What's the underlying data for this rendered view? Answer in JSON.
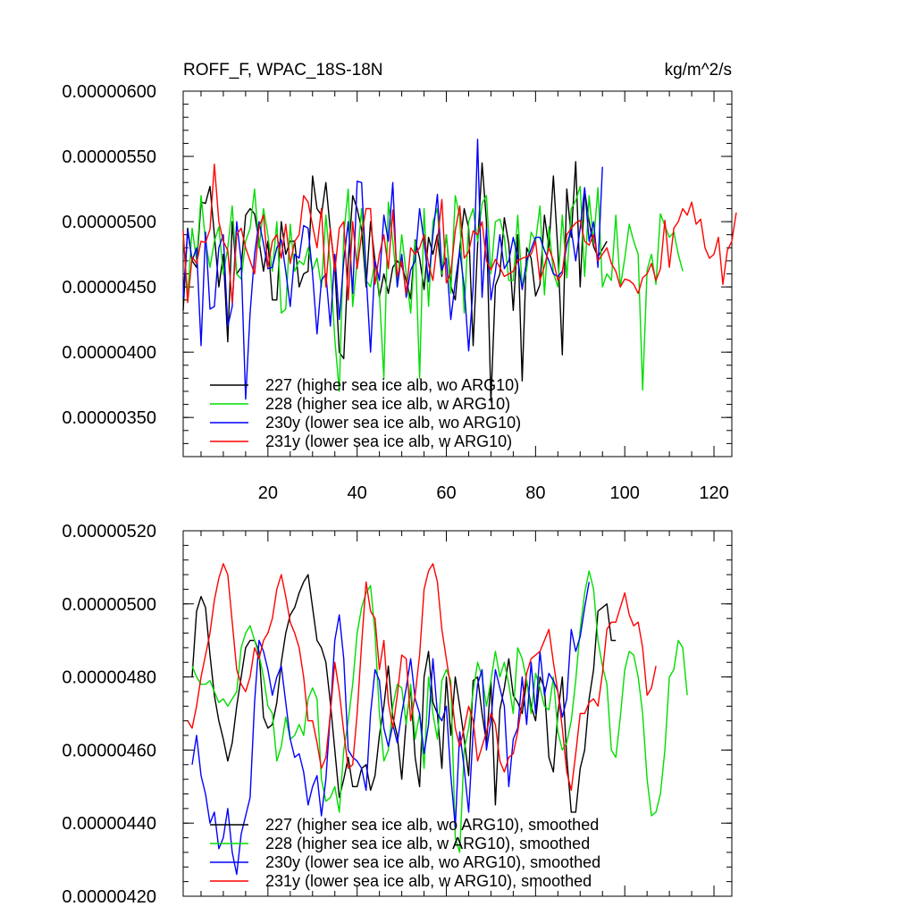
{
  "chart_data": [
    {
      "type": "line",
      "title": "ROFF_F, WPAC_18S-18N",
      "units": "kg/m^2/s",
      "xlim": [
        1,
        124
      ],
      "ylim": [
        3.2e-06,
        6e-06
      ],
      "xticks": [
        20,
        40,
        60,
        80,
        100,
        120
      ],
      "xtick_labels": [
        "20",
        "40",
        "60",
        "80",
        "100",
        "120"
      ],
      "yticks": [
        3.5e-06,
        4e-06,
        4.5e-06,
        5e-06,
        5.5e-06,
        6e-06
      ],
      "ytick_labels": [
        "0.00000350",
        "0.00000400",
        "0.00000450",
        "0.00000500",
        "0.00000550",
        "0.00000600"
      ],
      "legend_position": "bottom-left",
      "series": [
        {
          "name": "227 (higher sea ice alb, wo ARG10)",
          "color": "#000000",
          "x_start": 1,
          "values": [
            4.32,
            4.95,
            4.7,
            4.65,
            5.15,
            5.14,
            5.27,
            4.9,
            4.5,
            4.75,
            4.08,
            5.0,
            4.6,
            4.65,
            5.05,
            5.1,
            5.06,
            4.85,
            4.62,
            4.85,
            4.4,
            4.4,
            5.0,
            4.75,
            4.85,
            4.85,
            4.5,
            4.6,
            4.62,
            5.35,
            5.1,
            5.05,
            5.3,
            4.93,
            4.65,
            4.0,
            3.95,
            4.7,
            5.2,
            5.1,
            4.94,
            4.5,
            5.0,
            4.7,
            4.42,
            4.6,
            4.45,
            4.65,
            4.7,
            4.66,
            4.55,
            4.41,
            4.86,
            4.72,
            4.48,
            4.88,
            4.75,
            4.9,
            4.58,
            4.9,
            4.51,
            4.4,
            4.79,
            5.1,
            4.95,
            4.05,
            4.82,
            5.45,
            5.0,
            3.62,
            4.51,
            4.6,
            5.03,
            4.83,
            4.32,
            4.9,
            3.78,
            4.8,
            4.72,
            4.43,
            4.52,
            5.05,
            4.8,
            5.35,
            4.78,
            3.98,
            5.25,
            4.88,
            5.46,
            4.5,
            5.24,
            5.0,
            4.81,
            4.73,
            4.79,
            4.85
          ]
        },
        {
          "name": "228 (higher sea ice alb, w ARG10)",
          "color": "#00dd00",
          "x_start": 1,
          "values": [
            4.9,
            4.43,
            4.95,
            4.7,
            5.2,
            4.85,
            4.65,
            4.85,
            4.96,
            4.6,
            4.8,
            5.12,
            4.6,
            4.56,
            4.85,
            4.95,
            5.25,
            4.8,
            5.1,
            4.9,
            4.62,
            5.0,
            4.3,
            4.33,
            4.98,
            4.62,
            4.7,
            4.67,
            4.8,
            4.63,
            4.72,
            4.5,
            5.05,
            4.66,
            4.1,
            3.7,
            4.9,
            5.25,
            4.35,
            4.7,
            5.1,
            4.55,
            4.5,
            4.7,
            4.45,
            3.8,
            5.15,
            4.85,
            4.5,
            4.9,
            4.6,
            4.3,
            4.85,
            3.8,
            5.1,
            4.35,
            5.0,
            5.1,
            4.6,
            4.9,
            4.45,
            5.2,
            5.04,
            4.3,
            5.0,
            5.1,
            4.85,
            5.14,
            5.2,
            4.6,
            5.0,
            5.02,
            4.88,
            4.55,
            4.55,
            5.05,
            4.5,
            4.63,
            4.92,
            4.85,
            5.12,
            4.44,
            4.96,
            4.61,
            4.5,
            5.05,
            4.57,
            5.1,
            5.16,
            5.27,
            4.58,
            5.2,
            4.84,
            5.26,
            4.5,
            4.6,
            4.55,
            5.05,
            4.5,
            4.72,
            4.98,
            4.85,
            4.75,
            3.71,
            4.63,
            4.75,
            4.52,
            5.06,
            4.97,
            4.88,
            4.92,
            4.75,
            4.62
          ]
        },
        {
          "name": "230y (lower sea ice alb, wo ARG10)",
          "color": "#0000ff",
          "x_start": 1,
          "values": [
            4.42,
            4.93,
            4.7,
            4.8,
            4.05,
            4.92,
            4.33,
            4.35,
            4.8,
            4.9,
            4.2,
            4.35,
            5.0,
            4.7,
            3.64,
            4.3,
            4.75,
            5.0,
            4.83,
            4.64,
            4.65,
            4.8,
            4.86,
            4.62,
            4.35,
            4.75,
            4.72,
            4.97,
            4.95,
            4.6,
            4.14,
            4.55,
            4.6,
            4.2,
            4.75,
            4.25,
            4.7,
            5.0,
            4.45,
            5.31,
            5.3,
            4.6,
            4.0,
            4.7,
            4.55,
            5.05,
            4.85,
            5.3,
            4.5,
            4.75,
            4.42,
            4.63,
            4.7,
            5.1,
            4.85,
            4.54,
            4.9,
            5.21,
            4.63,
            4.72,
            4.25,
            4.54,
            4.78,
            4.5,
            4.01,
            4.5,
            5.63,
            4.42,
            4.95,
            4.4,
            4.62,
            4.9,
            4.64,
            4.7,
            4.88,
            4.72,
            4.48,
            4.7,
            4.79,
            4.88,
            4.88,
            4.78,
            4.7,
            4.6,
            4.58,
            4.62,
            4.82,
            4.94,
            4.7,
            4.95,
            5.26,
            4.85,
            5.0,
            4.65,
            5.42
          ]
        },
        {
          "name": "231y (lower sea ice alb, w ARG10)",
          "color": "#ff0000",
          "x_start": 1,
          "values": [
            4.93,
            4.38,
            4.73,
            4.68,
            4.85,
            4.84,
            4.94,
            5.44,
            5.0,
            4.85,
            4.78,
            4.38,
            4.9,
            4.95,
            4.8,
            4.7,
            4.6,
            4.96,
            5.05,
            4.65,
            4.85,
            4.9,
            4.72,
            4.98,
            4.68,
            4.85,
            4.9,
            5.2,
            5.15,
            4.97,
            4.8,
            5.1,
            4.5,
            4.95,
            4.62,
            4.95,
            5.0,
            4.4,
            5.0,
            4.64,
            4.9,
            5.1,
            5.1,
            4.52,
            4.75,
            4.9,
            4.64,
            5.09,
            4.58,
            4.7,
            4.45,
            4.8,
            4.75,
            4.8,
            4.9,
            4.67,
            4.55,
            4.85,
            5.17,
            4.53,
            4.61,
            4.93,
            5.12,
            4.72,
            4.77,
            4.93,
            4.9,
            5.0,
            4.7,
            4.63,
            4.71,
            4.65,
            4.58,
            4.6,
            4.62,
            4.7,
            4.72,
            4.73,
            4.75,
            4.85,
            4.55,
            4.66,
            4.8,
            4.7,
            4.55,
            4.6,
            4.9,
            4.95,
            4.99,
            5.01,
            4.85,
            4.82,
            4.9,
            4.7,
            4.75,
            4.8,
            4.68,
            4.62,
            4.5,
            4.56,
            4.55,
            4.52,
            4.45,
            4.57,
            4.6,
            4.68,
            4.55,
            4.64,
            5.01,
            4.65,
            4.95,
            5.0,
            5.1,
            5.05,
            5.15,
            4.98,
            5.02,
            4.8,
            4.72,
            4.75,
            4.88,
            4.52,
            4.78,
            4.85,
            5.07
          ]
        }
      ]
    },
    {
      "type": "line",
      "title": "",
      "xlim": [
        1,
        124
      ],
      "ylim": [
        4.2e-06,
        5.2e-06
      ],
      "xticks": [
        20,
        40,
        60,
        80,
        100,
        120
      ],
      "yticks": [
        4.2e-06,
        4.4e-06,
        4.6e-06,
        4.8e-06,
        5e-06,
        5.2e-06
      ],
      "ytick_labels": [
        "0.00000420",
        "0.00000440",
        "0.00000460",
        "0.00000480",
        "0.00000500",
        "0.00000520"
      ],
      "legend_position": "bottom-left",
      "series": [
        {
          "name": "227 (higher sea ice alb, wo ARG10), smoothed",
          "color": "#000000",
          "x_start": 3,
          "values": [
            4.8,
            4.98,
            5.02,
            4.99,
            4.86,
            4.75,
            4.68,
            4.63,
            4.57,
            4.62,
            4.72,
            4.8,
            4.88,
            4.9,
            4.9,
            4.87,
            4.69,
            4.66,
            4.67,
            4.73,
            4.84,
            4.92,
            4.97,
            4.99,
            5.03,
            5.06,
            5.08,
            4.99,
            4.9,
            4.88,
            4.84,
            4.73,
            4.6,
            4.47,
            4.52,
            4.58,
            4.5,
            4.5,
            4.55,
            4.56,
            4.49,
            4.53,
            4.64,
            4.72,
            4.83,
            4.69,
            4.64,
            4.52,
            4.68,
            4.77,
            4.58,
            4.5,
            4.8,
            4.87,
            4.73,
            4.7,
            4.55,
            4.8,
            4.64,
            4.8,
            4.72,
            4.63,
            4.53,
            4.79,
            4.8,
            4.7,
            4.62,
            4.79,
            4.45,
            4.71,
            4.77,
            4.85,
            4.75,
            4.73,
            4.7,
            4.79,
            4.72,
            4.68,
            4.8,
            4.77,
            4.58,
            4.54,
            4.7,
            4.8,
            4.58,
            4.43,
            4.43,
            4.55,
            4.6,
            4.74,
            4.82,
            4.98,
            4.99,
            5.0,
            4.9,
            4.9
          ]
        },
        {
          "name": "228 (higher sea ice alb, w ARG10), smoothed",
          "color": "#00dd00",
          "x_start": 3,
          "values": [
            4.83,
            4.8,
            4.78,
            4.78,
            4.79,
            4.76,
            4.73,
            4.74,
            4.72,
            4.74,
            4.76,
            4.88,
            4.92,
            4.94,
            4.9,
            4.86,
            4.8,
            4.72,
            4.7,
            4.57,
            4.61,
            4.69,
            4.63,
            4.64,
            4.67,
            4.64,
            4.74,
            4.77,
            4.74,
            4.52,
            4.46,
            4.47,
            4.5,
            4.43,
            4.6,
            4.68,
            4.78,
            4.92,
            4.99,
            5.03,
            5.05,
            4.92,
            4.7,
            4.57,
            4.6,
            4.72,
            4.78,
            4.77,
            4.67,
            4.78,
            4.63,
            4.7,
            4.55,
            4.8,
            4.7,
            4.63,
            4.79,
            4.82,
            4.79,
            4.36,
            4.32,
            4.6,
            4.66,
            4.76,
            4.84,
            4.8,
            4.72,
            4.79,
            4.87,
            4.8,
            4.84,
            4.78,
            4.7,
            4.88,
            4.85,
            4.79,
            4.7,
            4.81,
            4.77,
            4.72,
            4.71,
            4.8,
            4.65,
            4.6,
            4.62,
            4.68,
            4.79,
            4.93,
            5.03,
            5.09,
            5.04,
            4.9,
            4.83,
            4.78,
            4.6,
            4.58,
            4.69,
            4.82,
            4.87,
            4.86,
            4.8,
            4.7,
            4.52,
            4.42,
            4.43,
            4.48,
            4.6,
            4.8,
            4.82,
            4.9,
            4.88,
            4.75
          ]
        },
        {
          "name": "230y (lower sea ice alb, wo ARG10), smoothed",
          "color": "#0000ff",
          "x_start": 3,
          "values": [
            4.56,
            4.64,
            4.53,
            4.48,
            4.4,
            4.43,
            4.33,
            4.36,
            4.44,
            4.32,
            4.26,
            4.37,
            4.42,
            4.47,
            4.73,
            4.9,
            4.87,
            4.82,
            4.75,
            4.8,
            4.83,
            4.73,
            4.63,
            4.58,
            4.59,
            4.54,
            4.45,
            4.5,
            4.53,
            4.42,
            4.52,
            4.7,
            4.9,
            4.97,
            4.85,
            4.6,
            4.58,
            4.57,
            4.55,
            4.49,
            4.7,
            4.82,
            4.79,
            4.66,
            4.61,
            4.67,
            4.62,
            4.7,
            4.77,
            4.85,
            4.74,
            4.7,
            4.59,
            4.67,
            4.85,
            4.7,
            4.68,
            4.72,
            4.53,
            4.39,
            4.65,
            4.55,
            4.43,
            4.65,
            4.78,
            4.82,
            4.6,
            4.68,
            4.82,
            4.77,
            4.72,
            4.5,
            4.63,
            4.66,
            4.8,
            4.67,
            4.84,
            4.7,
            4.87,
            4.75,
            4.81,
            4.79,
            4.76,
            4.69,
            4.74,
            4.93,
            4.87,
            4.91,
            4.99,
            5.06
          ]
        },
        {
          "name": "231y (lower sea ice alb, w ARG10), smoothed",
          "color": "#ff0000",
          "x_start": 2,
          "values": [
            4.68,
            4.66,
            4.72,
            4.8,
            4.86,
            4.92,
            5.01,
            5.07,
            5.11,
            5.08,
            4.95,
            4.82,
            4.78,
            4.76,
            4.8,
            4.88,
            4.85,
            4.9,
            4.92,
            4.96,
            5.04,
            5.08,
            5.02,
            4.95,
            4.92,
            4.88,
            4.8,
            4.68,
            4.68,
            4.62,
            4.55,
            4.58,
            4.7,
            4.84,
            4.76,
            4.65,
            4.55,
            4.56,
            4.7,
            4.89,
            5.06,
            4.98,
            4.96,
            4.82,
            4.9,
            4.73,
            4.66,
            4.75,
            4.86,
            4.85,
            4.68,
            4.75,
            4.86,
            5.04,
            5.09,
            5.11,
            5.06,
            4.93,
            4.85,
            4.77,
            4.66,
            4.61,
            4.66,
            4.72,
            4.68,
            4.57,
            4.61,
            4.65,
            4.7,
            4.67,
            4.57,
            4.54,
            4.58,
            4.59,
            4.65,
            4.73,
            4.81,
            4.85,
            4.86,
            4.87,
            4.9,
            4.93,
            4.84,
            4.76,
            4.66,
            4.54,
            4.49,
            4.59,
            4.7,
            4.7,
            4.73,
            4.74,
            4.72,
            4.81,
            4.93,
            4.95,
            4.95,
            4.99,
            5.03,
            4.97,
            4.94,
            4.95,
            4.88,
            4.75,
            4.77,
            4.83
          ]
        }
      ]
    }
  ]
}
